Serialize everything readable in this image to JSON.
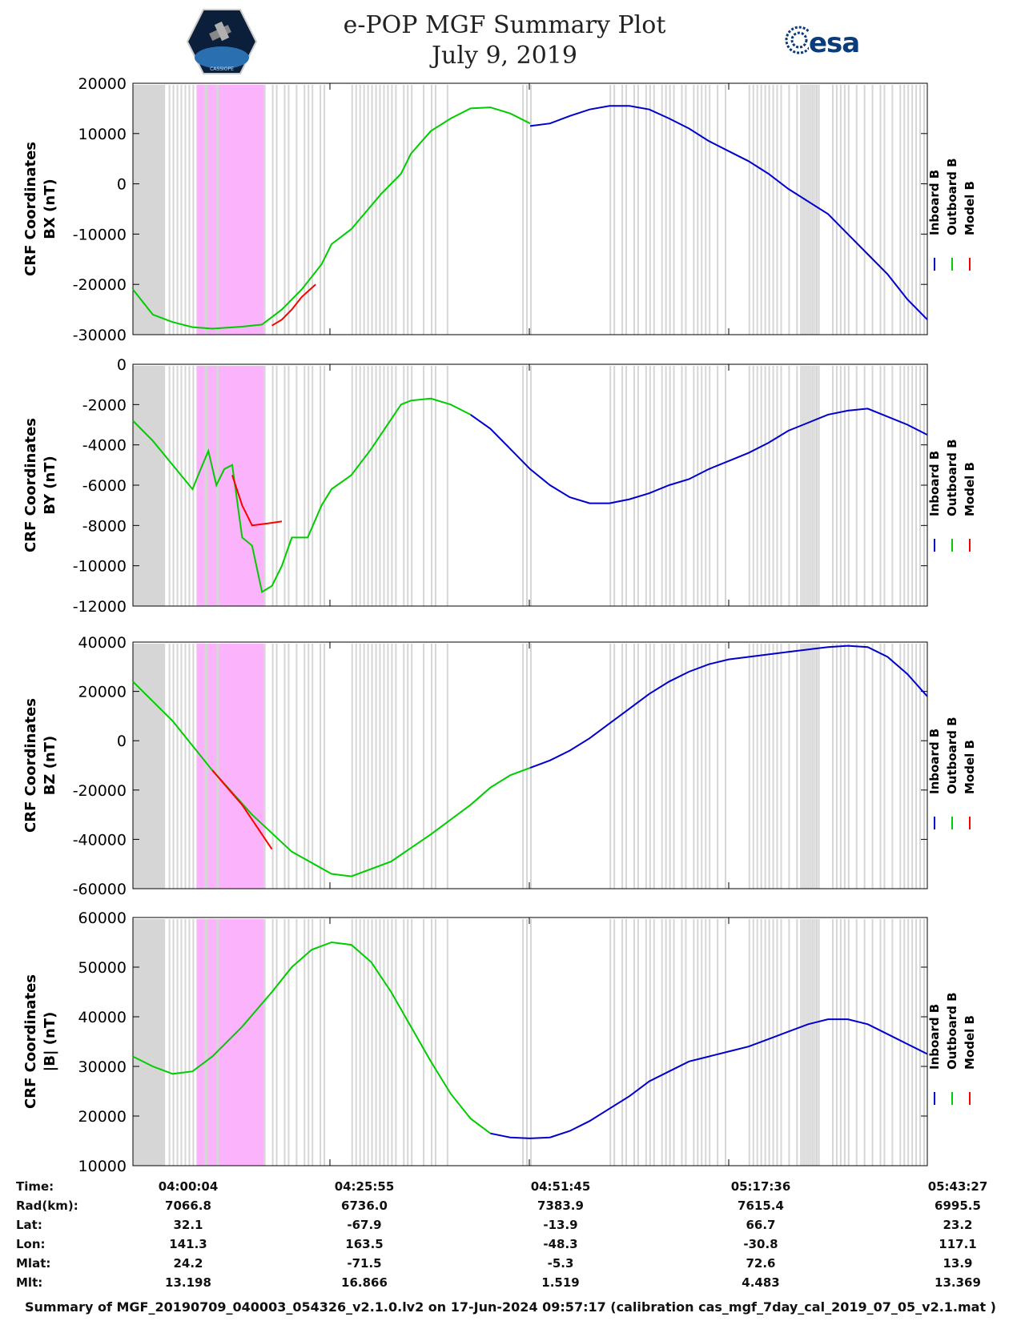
{
  "header": {
    "title_line1": "e-POP MGF Summary Plot",
    "title_line2": "July 9, 2019",
    "logo_right_text": "esa",
    "logo_left_text": "CASSIOPE"
  },
  "legend": {
    "labels": [
      "Inboard B",
      "Outboard B",
      "Model B"
    ],
    "colors": [
      "#0000cc",
      "#00cc00",
      "#ff0000"
    ]
  },
  "chart_data": [
    {
      "type": "line",
      "ylabel_line1": "CRF Coordinates",
      "ylabel_line2": "BX (nT)",
      "ylim": [
        -30000,
        20000
      ],
      "yticks": [
        20000,
        10000,
        0,
        -10000,
        -20000,
        -30000
      ],
      "ytick_labels": [
        "20000",
        "10000",
        "0",
        "-10000",
        "-20000",
        "-30000"
      ],
      "series": [
        {
          "name": "Outboard B",
          "x": [
            0,
            10,
            20,
            30,
            40,
            55,
            65,
            75,
            85,
            95,
            100,
            110,
            125,
            135,
            140,
            150,
            160,
            170,
            180,
            190,
            200
          ],
          "y": [
            -21000,
            -26000,
            -27500,
            -28500,
            -28800,
            -28400,
            -28000,
            -25000,
            -21000,
            -16000,
            -12000,
            -9000,
            -2000,
            2000,
            6000,
            10500,
            13000,
            15000,
            15200,
            14000,
            12000
          ]
        },
        {
          "name": "Model B",
          "x": [
            70,
            75,
            80,
            85,
            92
          ],
          "y": [
            -28200,
            -27000,
            -25000,
            -22500,
            -20000
          ]
        },
        {
          "name": "Inboard B",
          "x": [
            200,
            210,
            220,
            230,
            240,
            250,
            260,
            270,
            280,
            290,
            300,
            310,
            320,
            330,
            340,
            350,
            360,
            370,
            380,
            390,
            400
          ],
          "y": [
            11500,
            12000,
            13500,
            14800,
            15500,
            15500,
            14800,
            13000,
            11000,
            8500,
            6500,
            4500,
            2000,
            -1000,
            -3500,
            -6000,
            -10000,
            -14000,
            -18000,
            -23000,
            -27000
          ]
        }
      ]
    },
    {
      "type": "line",
      "ylabel_line1": "CRF Coordinates",
      "ylabel_line2": "BY (nT)",
      "ylim": [
        -12000,
        0
      ],
      "yticks": [
        0,
        -2000,
        -4000,
        -6000,
        -8000,
        -10000,
        -12000
      ],
      "ytick_labels": [
        "0",
        "-2000",
        "-4000",
        "-6000",
        "-8000",
        "-10000",
        "-12000"
      ],
      "series": [
        {
          "name": "Outboard B",
          "x": [
            0,
            10,
            20,
            30,
            35,
            38,
            42,
            46,
            50,
            55,
            60,
            65,
            70,
            75,
            80,
            88,
            95,
            100,
            110,
            120,
            135,
            140,
            150,
            160,
            170
          ],
          "y": [
            -2800,
            -3800,
            -5000,
            -6200,
            -5000,
            -4300,
            -6000,
            -5200,
            -5000,
            -8600,
            -9000,
            -11300,
            -11000,
            -10000,
            -8600,
            -8600,
            -7000,
            -6200,
            -5500,
            -4200,
            -2000,
            -1800,
            -1700,
            -2000,
            -2500
          ]
        },
        {
          "name": "Model B",
          "x": [
            50,
            55,
            60,
            68,
            75
          ],
          "y": [
            -5500,
            -7000,
            -8000,
            -7900,
            -7800
          ]
        },
        {
          "name": "Inboard B",
          "x": [
            170,
            180,
            190,
            200,
            210,
            220,
            230,
            240,
            250,
            260,
            270,
            280,
            290,
            300,
            310,
            320,
            330,
            340,
            350,
            360,
            370,
            380,
            390,
            400
          ],
          "y": [
            -2500,
            -3200,
            -4200,
            -5200,
            -6000,
            -6600,
            -6900,
            -6900,
            -6700,
            -6400,
            -6000,
            -5700,
            -5200,
            -4800,
            -4400,
            -3900,
            -3300,
            -2900,
            -2500,
            -2300,
            -2200,
            -2600,
            -3000,
            -3500
          ]
        }
      ]
    },
    {
      "type": "line",
      "ylabel_line1": "CRF Coordinates",
      "ylabel_line2": "BZ (nT)",
      "ylim": [
        -60000,
        40000
      ],
      "yticks": [
        40000,
        20000,
        0,
        -20000,
        -40000,
        -60000
      ],
      "ytick_labels": [
        "40000",
        "20000",
        "0",
        "-20000",
        "-40000",
        "-60000"
      ],
      "series": [
        {
          "name": "Outboard B",
          "x": [
            0,
            20,
            40,
            60,
            80,
            100,
            110,
            130,
            150,
            170,
            180,
            190,
            200
          ],
          "y": [
            24000,
            8000,
            -12000,
            -30000,
            -45000,
            -54000,
            -55000,
            -49000,
            -38000,
            -26000,
            -19000,
            -14000,
            -11000
          ]
        },
        {
          "name": "Model B",
          "x": [
            40,
            55,
            70
          ],
          "y": [
            -12000,
            -26000,
            -44000
          ]
        },
        {
          "name": "Inboard B",
          "x": [
            200,
            210,
            220,
            230,
            240,
            250,
            260,
            270,
            280,
            290,
            300,
            310,
            320,
            330,
            340,
            350,
            360,
            370,
            380,
            390,
            400
          ],
          "y": [
            -11000,
            -8000,
            -4000,
            1000,
            7000,
            13000,
            19000,
            24000,
            28000,
            31000,
            33000,
            34000,
            35000,
            36000,
            37000,
            38000,
            38500,
            38000,
            34000,
            27000,
            18000
          ]
        }
      ]
    },
    {
      "type": "line",
      "ylabel_line1": "CRF Coordinates",
      "ylabel_line2": "|B| (nT)",
      "ylim": [
        10000,
        60000
      ],
      "yticks": [
        60000,
        50000,
        40000,
        30000,
        20000,
        10000
      ],
      "ytick_labels": [
        "60000",
        "50000",
        "40000",
        "30000",
        "20000",
        "10000"
      ],
      "series": [
        {
          "name": "Outboard B",
          "x": [
            0,
            10,
            20,
            30,
            40,
            55,
            70,
            80,
            90,
            100,
            110,
            120,
            130,
            140,
            150,
            160,
            170,
            180
          ],
          "y": [
            32000,
            30000,
            28500,
            29000,
            32000,
            38000,
            45000,
            50000,
            53500,
            55000,
            54500,
            51000,
            45000,
            38000,
            31000,
            24500,
            19500,
            16500
          ]
        },
        {
          "name": "Inboard B",
          "x": [
            180,
            190,
            200,
            210,
            220,
            230,
            240,
            250,
            260,
            270,
            280,
            290,
            300,
            310,
            320,
            330,
            340,
            350,
            360,
            370,
            380,
            390,
            400
          ],
          "y": [
            16500,
            15700,
            15500,
            15700,
            17000,
            19000,
            21500,
            24000,
            27000,
            29000,
            31000,
            32000,
            33000,
            34000,
            35500,
            37000,
            38500,
            39500,
            39500,
            38500,
            36500,
            34500,
            32500
          ]
        }
      ]
    }
  ],
  "footer": {
    "row_labels": [
      "Time:",
      "Rad(km):",
      "Lat:",
      "Lon:",
      "Mlat:",
      "Mlt:"
    ],
    "columns": [
      {
        "values": [
          "04:00:04",
          "7066.8",
          "32.1",
          "141.3",
          "24.2",
          "13.198"
        ]
      },
      {
        "values": [
          "04:25:55",
          "6736.0",
          "-67.9",
          "163.5",
          "-71.5",
          "16.866"
        ]
      },
      {
        "values": [
          "04:51:45",
          "7383.9",
          "-13.9",
          "-48.3",
          "-5.3",
          "1.519"
        ]
      },
      {
        "values": [
          "05:17:36",
          "7615.4",
          "66.7",
          "-30.8",
          "72.6",
          "4.483"
        ]
      },
      {
        "values": [
          "05:43:27",
          "6995.5",
          "23.2",
          "117.1",
          "13.9",
          "13.369"
        ]
      }
    ],
    "summary": "Summary of MGF_20190709_040003_054326_v2.1.0.lv2 on 17-Jun-2024 09:57:17 (calibration cas_mgf_7day_cal_2019_07_05_v2.1.mat )"
  }
}
